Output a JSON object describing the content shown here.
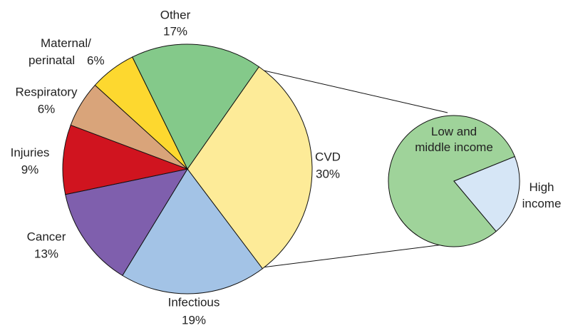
{
  "chart_data": [
    {
      "type": "pie",
      "categories": [
        "CVD",
        "Infectious",
        "Cancer",
        "Injuries",
        "Respiratory",
        "Maternal/ perinatal",
        "Other"
      ],
      "values": [
        30,
        19,
        13,
        9,
        6,
        6,
        17
      ],
      "value_labels": [
        "30%",
        "19%",
        "13%",
        "9%",
        "6%",
        "6%",
        "17%"
      ],
      "colors": [
        "#fdeb98",
        "#a3c3e6",
        "#7f5fad",
        "#d0141f",
        "#d9a47a",
        "#fdd82f",
        "#84c98a"
      ]
    },
    {
      "type": "pie",
      "categories": [
        "Low and middle income",
        "High income"
      ],
      "values": [
        80,
        20
      ],
      "colors": [
        "#9fd39a",
        "#d6e6f6"
      ]
    }
  ]
}
